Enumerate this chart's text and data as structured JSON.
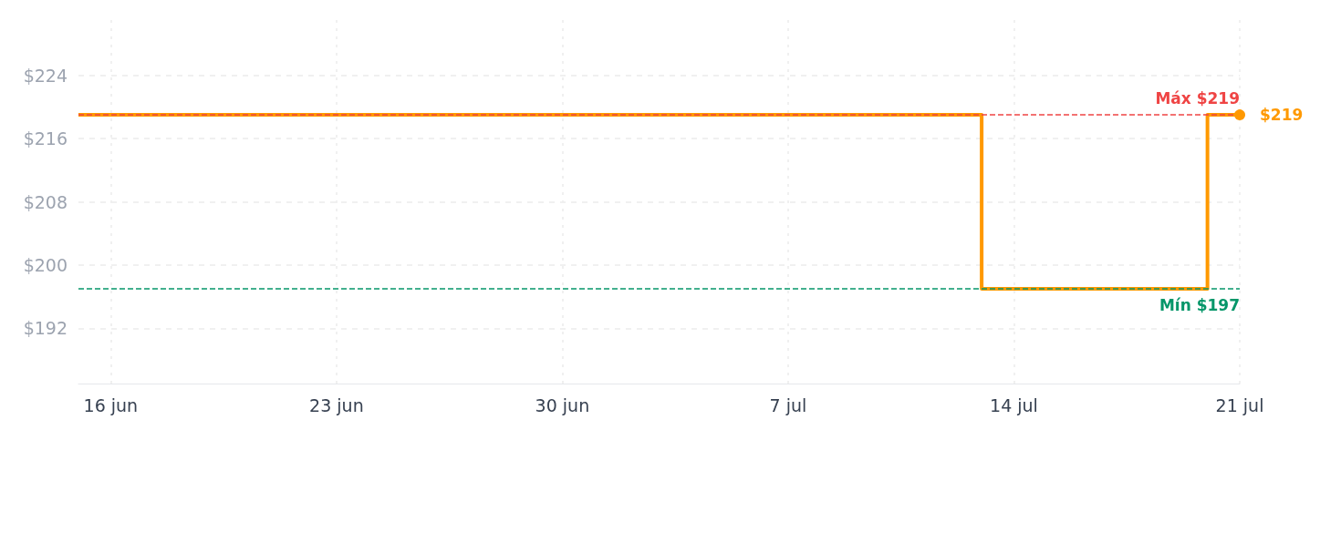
{
  "chart_data": {
    "type": "step",
    "x": [
      "--06-15",
      "--07-13",
      "--07-20",
      "--07-21"
    ],
    "series": [
      {
        "color": "#ff9900",
        "values": [
          219,
          197,
          219,
          219
        ]
      }
    ],
    "xlim": [
      "--06-15",
      "--07-21"
    ],
    "xticks": [
      {
        "value": "--06-16",
        "label": "16 jun"
      },
      {
        "value": "--06-23",
        "label": "23 jun"
      },
      {
        "value": "--06-30",
        "label": "30 jun"
      },
      {
        "value": "--07-07",
        "label": "7 jul"
      },
      {
        "value": "--07-14",
        "label": "14 jul"
      },
      {
        "value": "--07-21",
        "label": "21 jul"
      }
    ],
    "ylim": [
      185,
      231
    ],
    "yticks": [
      {
        "value": 192,
        "label": "$192"
      },
      {
        "value": 200,
        "label": "$200"
      },
      {
        "value": 208,
        "label": "$208"
      },
      {
        "value": 216,
        "label": "$216"
      },
      {
        "value": 224,
        "label": "$224"
      }
    ],
    "ref_lines": [
      {
        "axis": "y",
        "value": 219,
        "label": "Máx $219",
        "color": "#ef4444",
        "line_style": "dashed"
      },
      {
        "axis": "y",
        "value": 197,
        "label": "Mín $197",
        "color": "#059669",
        "line_style": "dashed"
      }
    ],
    "annotations": [
      {
        "text": "$219",
        "x": "--07-21",
        "y": 219
      }
    ],
    "grid": true,
    "marker": "none",
    "line_style": "solid"
  }
}
